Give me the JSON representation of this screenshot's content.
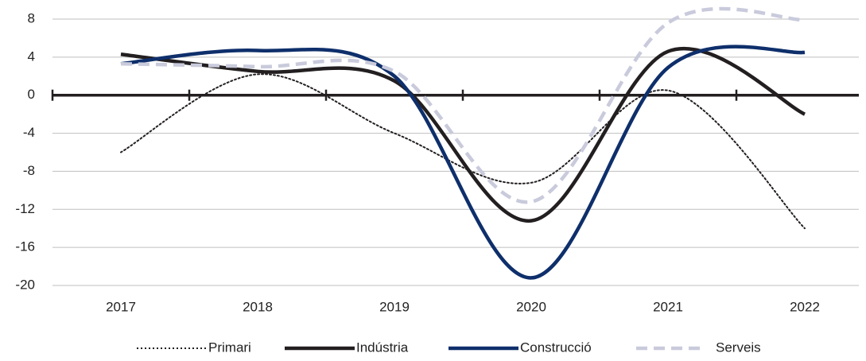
{
  "chart_data": {
    "type": "line",
    "categories": [
      "2017",
      "2018",
      "2019",
      "2020",
      "2021",
      "2022"
    ],
    "series": [
      {
        "name": "Primari",
        "color": "#231f20",
        "dash": "dotted",
        "values": [
          -6,
          2.2,
          -4,
          -9.2,
          0.5,
          -14
        ]
      },
      {
        "name": "Indústria",
        "color": "#231f20",
        "dash": "solid",
        "values": [
          4.3,
          2.5,
          1.5,
          -13.2,
          4.6,
          -2
        ]
      },
      {
        "name": "Construcció",
        "color": "#0e2f6b",
        "dash": "solid",
        "values": [
          3.3,
          4.7,
          2,
          -19.2,
          2.9,
          4.5
        ]
      },
      {
        "name": "Serveis",
        "color": "#c9cbdc",
        "dash": "dashed",
        "values": [
          3.3,
          3,
          2.5,
          -11.2,
          7.6,
          7.9
        ]
      }
    ],
    "ylim": [
      -20,
      8
    ],
    "yticks": [
      -20,
      -16,
      -12,
      -8,
      -4,
      0,
      4,
      8
    ],
    "grid": true,
    "legend": "bottom"
  }
}
